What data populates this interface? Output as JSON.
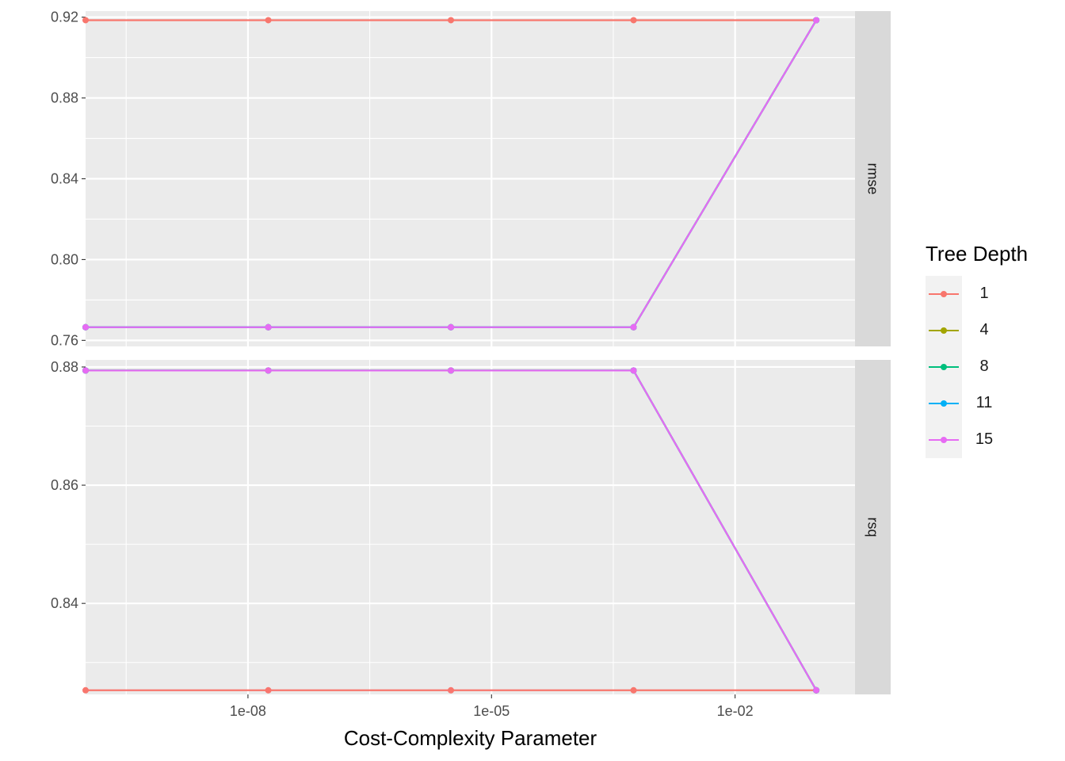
{
  "chart_data": {
    "type": "line",
    "xlabel": "Cost-Complexity Parameter",
    "x_scale": "log10",
    "x_ticks": [
      "1e-08",
      "1e-05",
      "1e-02"
    ],
    "x_tick_values": [
      1e-08,
      1e-05,
      0.01
    ],
    "xlim": [
      1e-10,
      0.3
    ],
    "x": [
      1e-10,
      1.78e-08,
      3.16e-06,
      0.000562,
      0.1
    ],
    "legend": {
      "title": "Tree Depth",
      "position": "right"
    },
    "series_colors": {
      "1": "#F8766D",
      "4": "#A3A500",
      "8": "#00BF7D",
      "11": "#00B0F6",
      "15": "#E76BF3"
    },
    "panels": [
      {
        "strip": "rmse",
        "ylim": [
          0.757,
          0.923
        ],
        "y_ticks": [
          "0.76",
          "0.80",
          "0.84",
          "0.88",
          "0.92"
        ],
        "y_tick_values": [
          0.76,
          0.8,
          0.84,
          0.88,
          0.92
        ],
        "y_minor": [
          0.78,
          0.82,
          0.86,
          0.9
        ],
        "series": [
          {
            "name": "1",
            "values": [
              0.9185,
              0.9185,
              0.9185,
              0.9185,
              0.9185
            ]
          },
          {
            "name": "4",
            "values": [
              0.7665,
              0.7665,
              0.7665,
              0.7665,
              0.9185
            ]
          },
          {
            "name": "8",
            "values": [
              0.7665,
              0.7665,
              0.7665,
              0.7665,
              0.9185
            ]
          },
          {
            "name": "11",
            "values": [
              0.7665,
              0.7665,
              0.7665,
              0.7665,
              0.9185
            ]
          },
          {
            "name": "15",
            "values": [
              0.7665,
              0.7665,
              0.7665,
              0.7665,
              0.9185
            ]
          }
        ]
      },
      {
        "strip": "rsq",
        "ylim": [
          0.8246,
          0.8812
        ],
        "y_ticks": [
          "0.84",
          "0.86",
          "0.88"
        ],
        "y_tick_values": [
          0.84,
          0.86,
          0.88
        ],
        "y_minor": [
          0.83,
          0.85,
          0.87
        ],
        "series": [
          {
            "name": "1",
            "values": [
              0.8253,
              0.8253,
              0.8253,
              0.8253,
              0.8253
            ]
          },
          {
            "name": "4",
            "values": [
              0.8794,
              0.8794,
              0.8794,
              0.8794,
              0.8253
            ]
          },
          {
            "name": "8",
            "values": [
              0.8794,
              0.8794,
              0.8794,
              0.8794,
              0.8253
            ]
          },
          {
            "name": "11",
            "values": [
              0.8794,
              0.8794,
              0.8794,
              0.8794,
              0.8253
            ]
          },
          {
            "name": "15",
            "values": [
              0.8794,
              0.8794,
              0.8794,
              0.8794,
              0.8253
            ]
          }
        ]
      }
    ]
  }
}
